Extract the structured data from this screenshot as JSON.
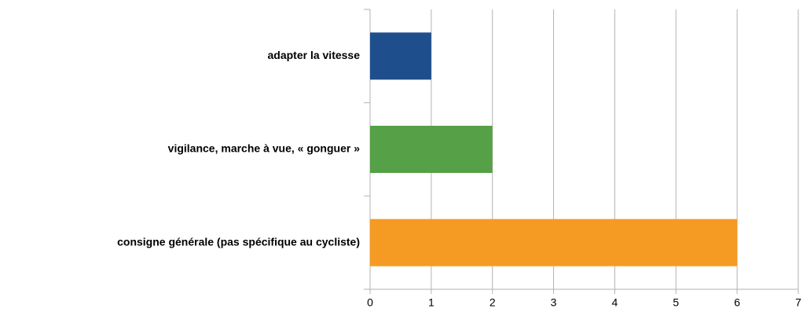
{
  "chart_data": {
    "type": "bar",
    "orientation": "horizontal",
    "categories": [
      "adapter la vitesse",
      "vigilance, marche à vue, « gonguer »",
      "consigne générale  (pas spécifique au cycliste)"
    ],
    "values": [
      1,
      2,
      6
    ],
    "colors": [
      "#1f4e8c",
      "#56a047",
      "#f59a23"
    ],
    "xlim": [
      0,
      7
    ],
    "xticks": [
      0,
      1,
      2,
      3,
      4,
      5,
      6,
      7
    ],
    "grid": true
  }
}
